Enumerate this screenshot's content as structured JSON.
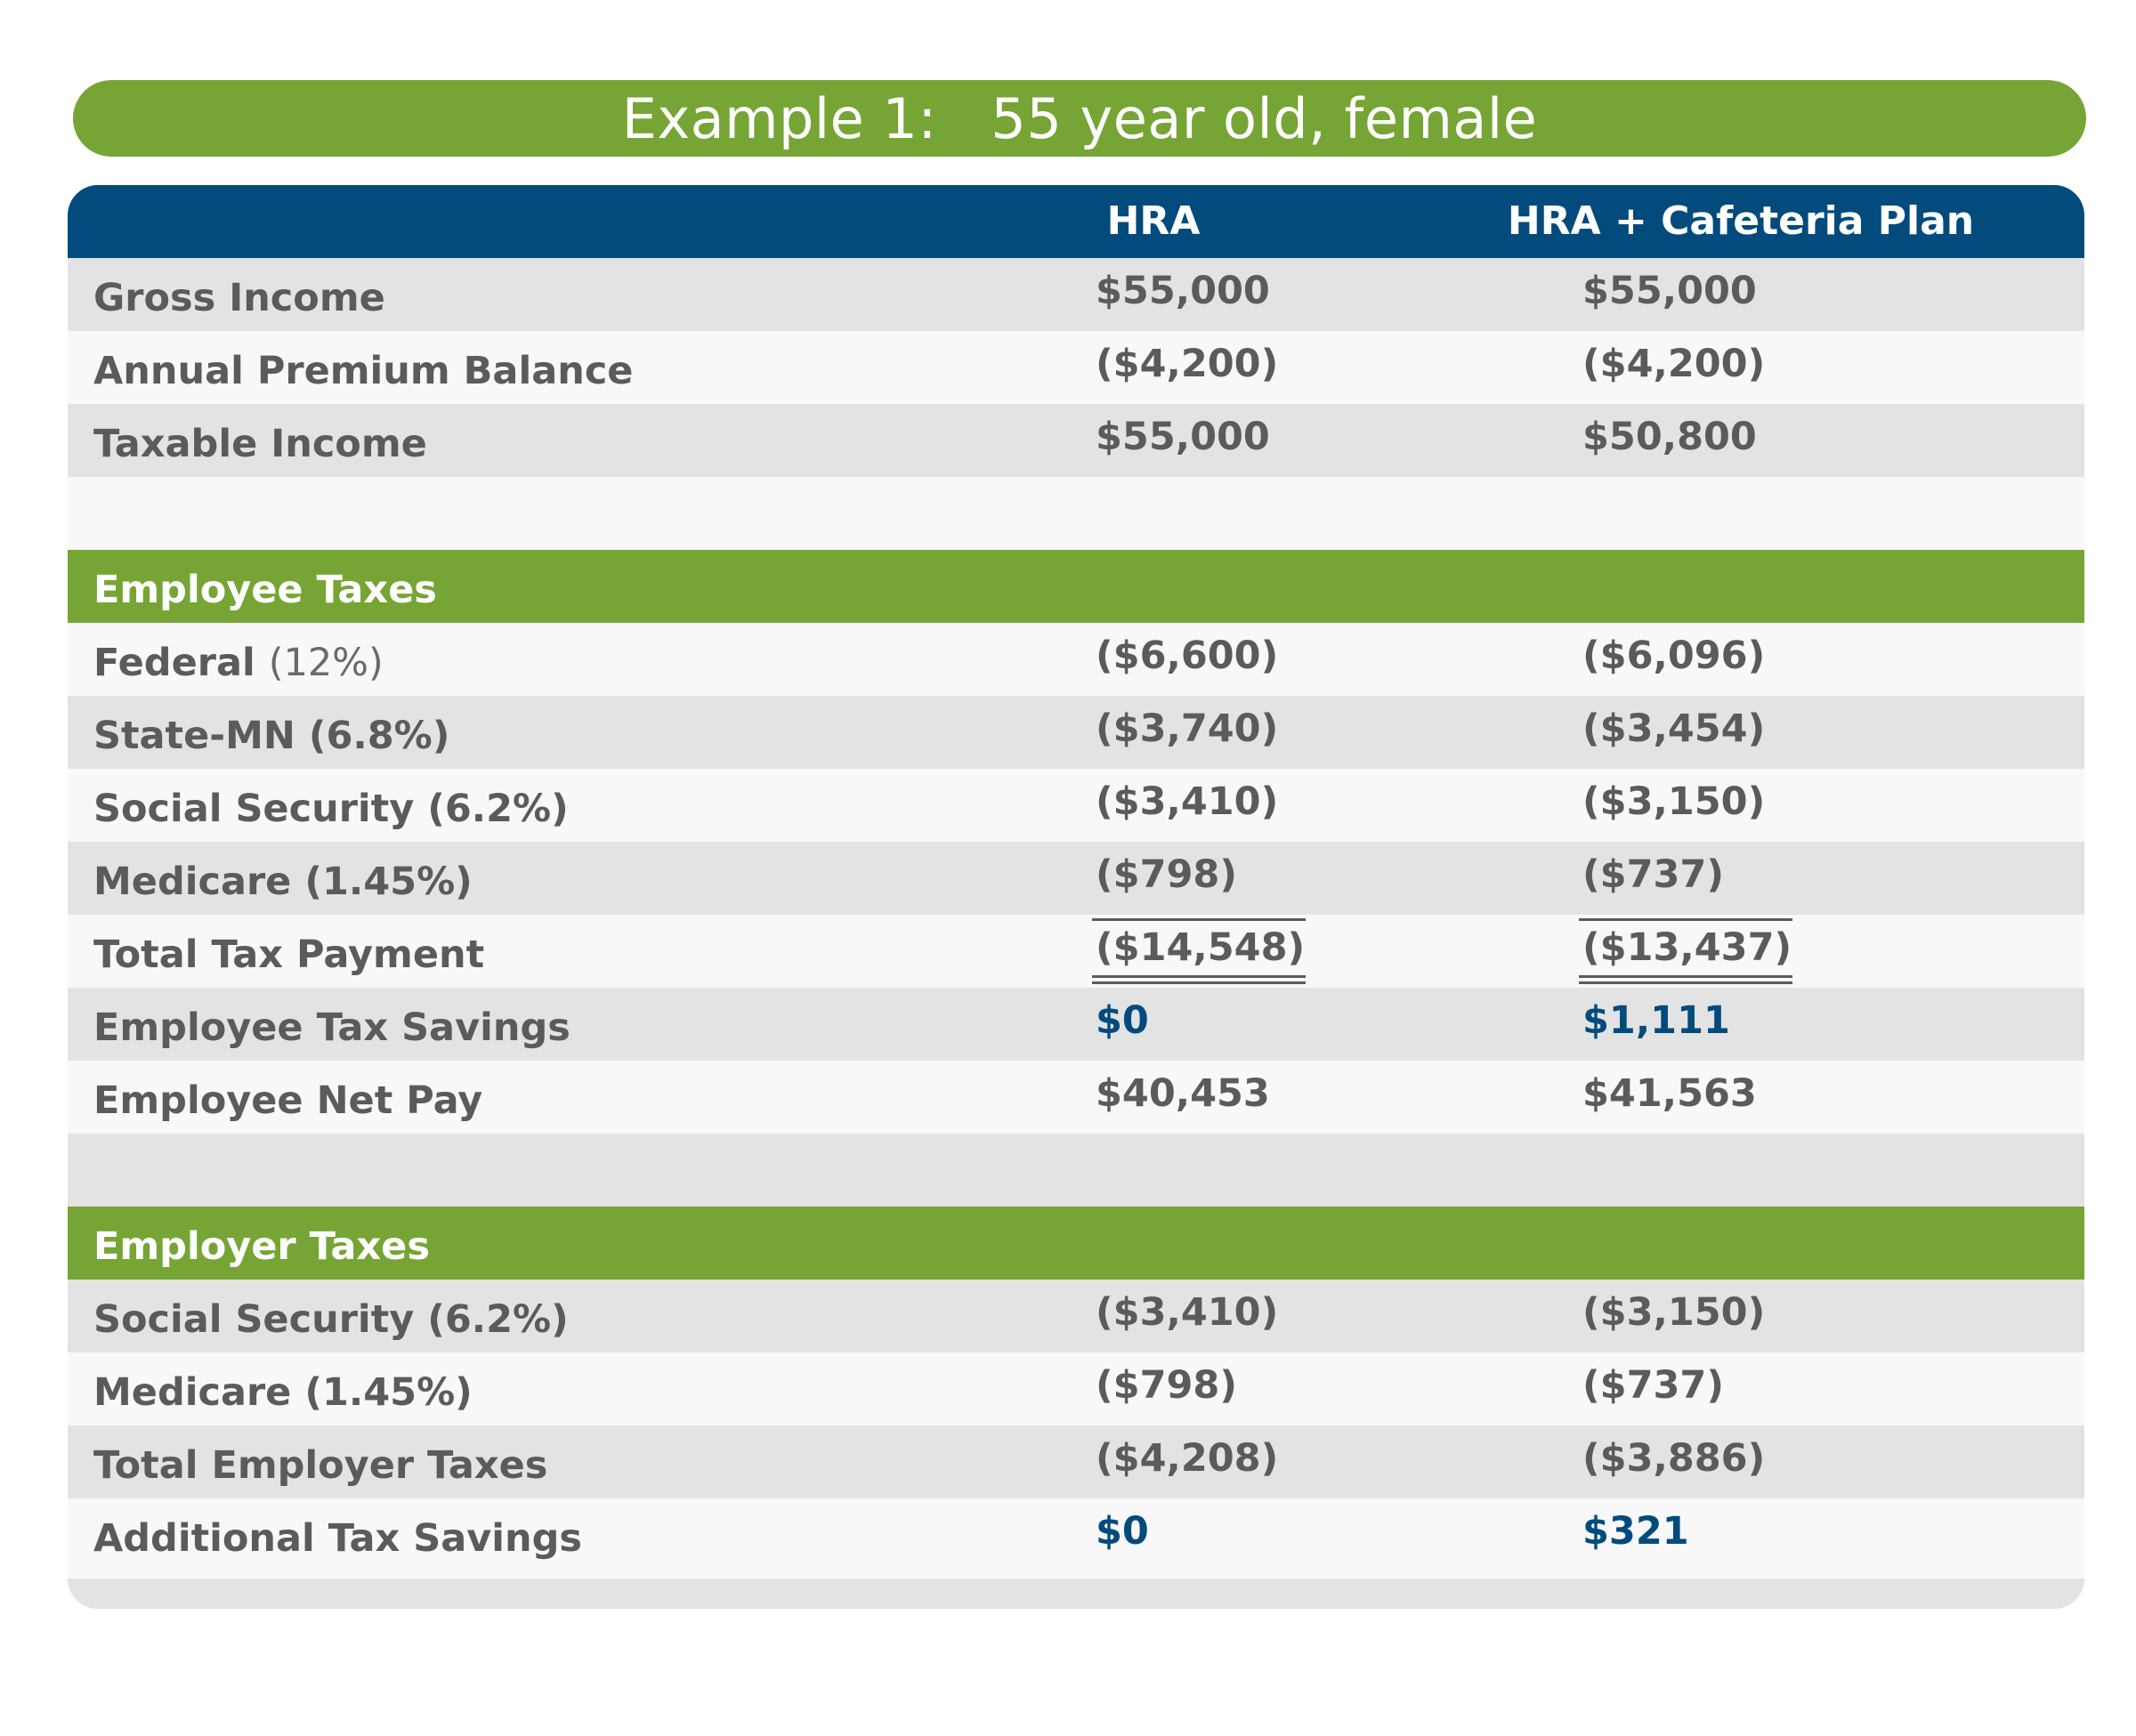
{
  "title": "Example 1:   55 year old, female",
  "columns": {
    "col1": "HRA",
    "col2": "HRA + Cafeteria Plan"
  },
  "colors": {
    "green": "#76a535",
    "navy": "#034b7d",
    "text_gray": "#5b5b5d",
    "row_dark": "#e3e3e3",
    "row_light": "#f8f8f8"
  },
  "income": [
    {
      "label": "Gross Income",
      "hra": "$55,000",
      "caf": "$55,000"
    },
    {
      "label": "Annual Premium Balance",
      "hra": "($4,200)",
      "caf": "($4,200)"
    },
    {
      "label": "Taxable Income",
      "hra": "$55,000",
      "caf": "$50,800"
    }
  ],
  "employee_taxes": {
    "heading": "Employee Taxes",
    "rows": [
      {
        "label": "Federal",
        "pct": "(12%)",
        "hra": "($6,600)",
        "caf": "($6,096)"
      },
      {
        "label": "State-MN (6.8%)",
        "hra": "($3,740)",
        "caf": "($3,454)"
      },
      {
        "label": "Social Security (6.2%)",
        "hra": "($3,410)",
        "caf": "($3,150)"
      },
      {
        "label": "Medicare (1.45%)",
        "hra": "($798)",
        "caf": "($737)"
      },
      {
        "label": "Total Tax Payment",
        "hra": "($14,548)",
        "caf": "($13,437)"
      },
      {
        "label": "Employee Tax Savings",
        "hra": "$0",
        "caf": "$1,111"
      },
      {
        "label": "Employee Net Pay",
        "hra": "$40,453",
        "caf": "$41,563"
      }
    ]
  },
  "employer_taxes": {
    "heading": "Employer Taxes",
    "rows": [
      {
        "label": "Social Security (6.2%)",
        "hra": "($3,410)",
        "caf": "($3,150)"
      },
      {
        "label": "Medicare (1.45%)",
        "hra": "($798)",
        "caf": "($737)"
      },
      {
        "label": "Total Employer Taxes",
        "hra": "($4,208)",
        "caf": "($3,886)"
      },
      {
        "label": "Additional Tax Savings",
        "hra": "$0",
        "caf": "$321"
      }
    ]
  }
}
